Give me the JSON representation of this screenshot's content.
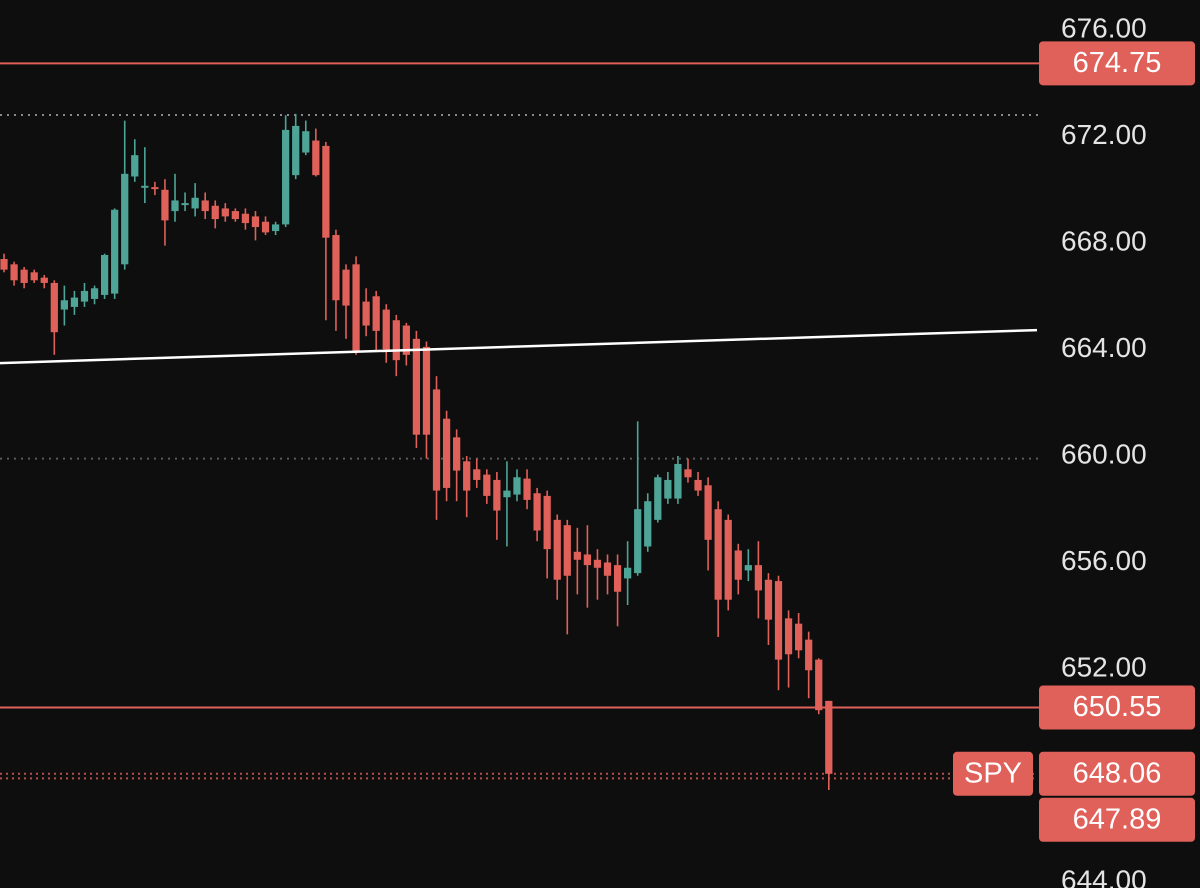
{
  "chart_data": {
    "type": "candlestick",
    "up_color": "#4ea597",
    "down_color": "#e0605a",
    "xlim": [
      -0.4,
      102.7
    ],
    "ylim": [
      643.77,
      677.13
    ],
    "yticks": [
      {
        "value": 676,
        "label": "676.00"
      },
      {
        "value": 672,
        "label": "672.00"
      },
      {
        "value": 668,
        "label": "668.00"
      },
      {
        "value": 664,
        "label": "664.00"
      },
      {
        "value": 660,
        "label": "660.00"
      },
      {
        "value": 656,
        "label": "656.00"
      },
      {
        "value": 652,
        "label": "652.00"
      },
      {
        "value": 644,
        "label": "644.00"
      }
    ],
    "open": [
      667.4,
      667.2,
      667.0,
      666.9,
      666.7,
      666.5,
      665.5,
      665.6,
      665.8,
      665.9,
      666.05,
      666.1,
      667.2,
      670.5,
      670.1,
      670.1,
      670.0,
      669.2,
      669.5,
      669.3,
      669.6,
      669.4,
      669.3,
      669.2,
      669.1,
      669.0,
      668.8,
      668.45,
      668.7,
      670.55,
      671.4,
      671.85,
      671.65,
      668.3,
      667.0,
      667.2,
      665.8,
      666.0,
      665.5,
      665.1,
      664.9,
      664.4,
      664.1,
      662.5,
      661.4,
      660.7,
      659.8,
      659.5,
      659.3,
      659.1,
      658.45,
      658.55,
      659.15,
      658.6,
      658.5,
      657.6,
      657.4,
      656.4,
      656.3,
      656.1,
      656.0,
      655.9,
      655.4,
      655.6,
      656.6,
      657.6,
      658.4,
      658.4,
      659.5,
      659.1,
      658.9,
      658.0,
      657.6,
      656.45,
      655.7,
      655.9,
      655.35,
      655.3,
      653.9,
      653.7,
      653.1,
      652.35,
      650.8
    ],
    "high": [
      667.6,
      667.3,
      667.1,
      667.0,
      666.8,
      666.6,
      666.4,
      666.2,
      666.5,
      666.4,
      667.6,
      669.3,
      672.6,
      671.9,
      671.6,
      670.3,
      670.4,
      670.6,
      669.9,
      670.25,
      669.9,
      669.6,
      669.5,
      669.3,
      669.3,
      669.2,
      669.0,
      668.8,
      672.8,
      672.85,
      672.6,
      672.3,
      671.8,
      668.5,
      667.2,
      667.5,
      666.3,
      666.2,
      665.7,
      665.3,
      665.0,
      664.7,
      664.3,
      663.0,
      661.7,
      661.0,
      660.0,
      659.9,
      659.5,
      659.4,
      659.8,
      659.5,
      659.5,
      658.8,
      658.7,
      657.8,
      657.6,
      657.3,
      657.4,
      656.5,
      656.3,
      656.3,
      656.8,
      661.3,
      658.6,
      659.3,
      659.4,
      660.0,
      659.9,
      659.4,
      659.2,
      658.3,
      657.8,
      656.7,
      656.5,
      656.8,
      655.6,
      655.5,
      654.2,
      654.1,
      653.4,
      652.4,
      650.8
    ],
    "low": [
      666.9,
      666.4,
      666.3,
      666.5,
      666.3,
      663.8,
      664.9,
      665.3,
      665.6,
      665.7,
      665.9,
      665.9,
      667.0,
      670.3,
      669.5,
      669.8,
      667.9,
      668.8,
      669.2,
      669.0,
      668.9,
      668.55,
      668.8,
      668.8,
      668.5,
      668.1,
      668.3,
      668.3,
      668.6,
      670.4,
      671.3,
      670.5,
      665.1,
      664.7,
      664.4,
      663.8,
      664.5,
      663.9,
      663.5,
      663.0,
      663.4,
      660.3,
      659.9,
      657.6,
      658.3,
      658.3,
      657.7,
      658.8,
      658.2,
      656.85,
      656.6,
      658.3,
      658.0,
      656.8,
      655.4,
      654.6,
      653.3,
      654.8,
      654.3,
      654.6,
      654.8,
      653.6,
      654.4,
      655.5,
      656.4,
      657.5,
      658.2,
      658.2,
      659.0,
      658.5,
      655.7,
      653.2,
      654.2,
      654.8,
      655.3,
      653.9,
      652.9,
      651.2,
      651.3,
      652.4,
      650.9,
      650.3,
      647.45
    ],
    "close": [
      667.0,
      666.6,
      666.5,
      666.6,
      666.5,
      664.65,
      665.85,
      665.95,
      666.2,
      666.3,
      667.55,
      669.25,
      670.6,
      671.3,
      670.15,
      670.05,
      668.85,
      669.6,
      669.5,
      669.7,
      669.2,
      668.9,
      669.0,
      668.9,
      668.75,
      668.6,
      668.4,
      668.7,
      672.25,
      672.4,
      672.2,
      670.55,
      668.2,
      665.85,
      665.65,
      663.95,
      664.9,
      664.7,
      664.0,
      663.6,
      663.8,
      660.8,
      660.8,
      658.7,
      658.8,
      659.45,
      658.7,
      659.1,
      658.5,
      657.95,
      658.7,
      659.2,
      658.35,
      657.2,
      656.5,
      655.35,
      655.5,
      656.1,
      655.9,
      655.8,
      655.5,
      654.9,
      655.8,
      658.0,
      658.3,
      659.2,
      659.1,
      659.7,
      659.2,
      658.7,
      656.85,
      654.6,
      654.6,
      655.35,
      655.9,
      654.95,
      653.85,
      652.35,
      652.55,
      652.7,
      651.95,
      650.45,
      648.06
    ],
    "levels": [
      {
        "value": 674.75,
        "color": "#e0605a",
        "style": "solid",
        "tag": true
      },
      {
        "value": 672.81,
        "color": "#8a8a8a",
        "style": "dotted",
        "tag": false
      },
      {
        "value": 659.9,
        "color": "#5a5a5a",
        "style": "dotted",
        "tag": false
      },
      {
        "value": 650.55,
        "color": "#e0605a",
        "style": "solid",
        "tag": true
      }
    ],
    "trendline": {
      "x": [
        -0.4,
        102.7
      ],
      "y": [
        663.49,
        664.73
      ],
      "color": "#ffffff"
    },
    "price_tags": [
      {
        "value": 648.06,
        "symbol": "SPY",
        "color": "#e0605a"
      },
      {
        "value": 647.89,
        "color": "#e0605a"
      }
    ]
  }
}
